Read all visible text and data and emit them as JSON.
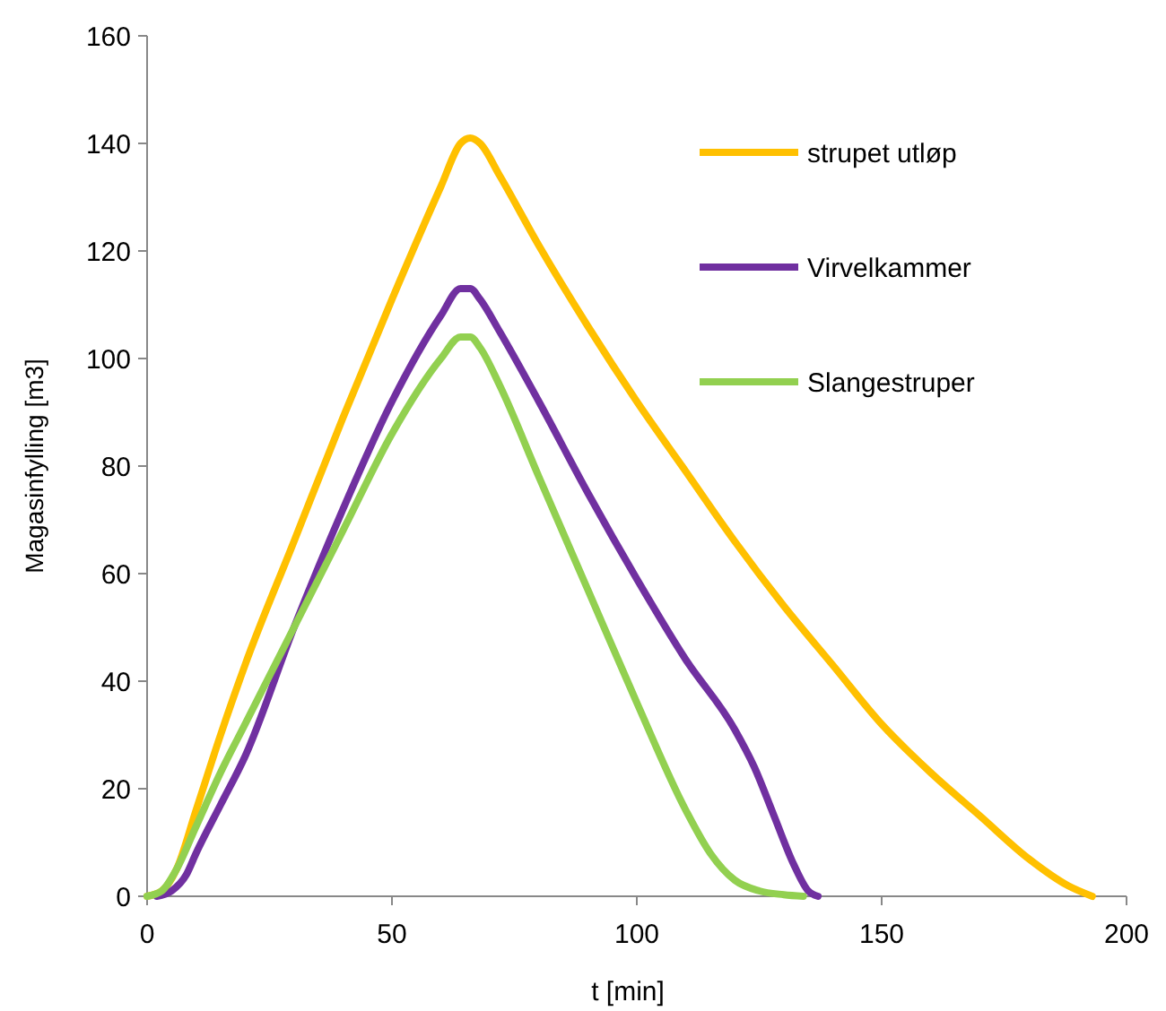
{
  "chart_data": {
    "type": "line",
    "xlabel": "t [min]",
    "ylabel": "Magasinfylling [m3]",
    "xlim": [
      0,
      200
    ],
    "xticks": [
      0,
      50,
      100,
      150,
      200
    ],
    "ylim": [
      0,
      160
    ],
    "yticks": [
      0,
      20,
      40,
      60,
      80,
      100,
      120,
      140,
      160
    ],
    "grid": false,
    "legend": "top right",
    "marker": "none",
    "line_style": "solid",
    "series": [
      {
        "name": "strupet utløp",
        "color": "#ffc000",
        "x": [
          0,
          3,
          6,
          10,
          15,
          20,
          30,
          40,
          50,
          60,
          64,
          66,
          68,
          72,
          80,
          90,
          100,
          110,
          120,
          130,
          140,
          150,
          160,
          170,
          180,
          188,
          193
        ],
        "values": [
          0,
          1,
          5,
          16,
          30,
          43,
          66,
          89,
          111,
          132,
          140,
          141,
          140,
          134,
          121,
          106,
          92,
          79,
          66,
          54,
          43,
          32,
          23,
          15,
          7,
          2,
          0
        ]
      },
      {
        "name": "Virvelkammer",
        "color": "#7030a0",
        "x": [
          2,
          5,
          8,
          10,
          15,
          20,
          30,
          40,
          50,
          60,
          64,
          66,
          68,
          72,
          80,
          90,
          100,
          110,
          120,
          124,
          128,
          132,
          135,
          137
        ],
        "values": [
          0,
          1,
          4,
          8,
          17,
          26,
          50,
          72,
          92,
          108,
          113,
          113,
          111,
          105,
          92,
          75,
          59,
          44,
          31,
          24,
          15,
          6,
          1,
          0
        ]
      },
      {
        "name": "Slangestruper",
        "color": "#92d050",
        "x": [
          0,
          3,
          6,
          10,
          15,
          20,
          30,
          40,
          50,
          60,
          64,
          66,
          68,
          72,
          80,
          90,
          100,
          110,
          115,
          120,
          125,
          130,
          134
        ],
        "values": [
          0,
          1,
          5,
          13,
          23,
          32,
          50,
          68,
          86,
          100,
          104,
          104,
          102,
          95,
          78,
          57,
          36,
          16,
          8,
          3,
          1,
          0.3,
          0
        ]
      }
    ]
  }
}
